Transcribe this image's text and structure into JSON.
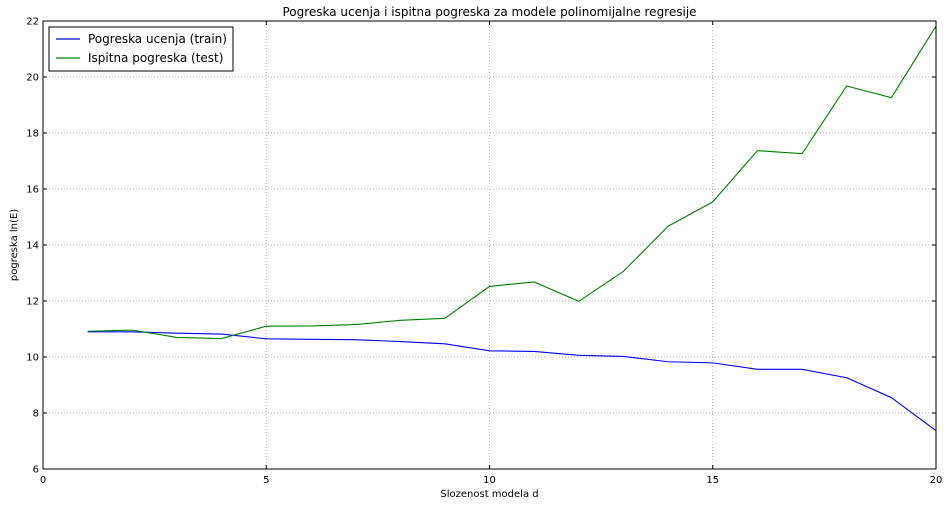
{
  "chart_data": {
    "type": "line",
    "title": "Pogreska ucenja i ispitna pogreska za modele polinomijalne regresije",
    "xlabel": "Slozenost modela d",
    "ylabel": "pogreska ln(E)",
    "xlim": [
      0,
      20
    ],
    "ylim": [
      6,
      22
    ],
    "xticks": [
      0,
      5,
      10,
      15,
      20
    ],
    "yticks": [
      6,
      8,
      10,
      12,
      14,
      16,
      18,
      20,
      22
    ],
    "grid": true,
    "legend_position": "top-left",
    "x": [
      1,
      2,
      3,
      4,
      5,
      6,
      7,
      8,
      9,
      10,
      11,
      12,
      13,
      14,
      15,
      16,
      17,
      18,
      19,
      20
    ],
    "series": [
      {
        "name": "Pogreska ucenja (train)",
        "color": "#0000ff",
        "values": [
          10.9,
          10.9,
          10.85,
          10.82,
          10.65,
          10.63,
          10.62,
          10.55,
          10.47,
          10.22,
          10.2,
          10.06,
          10.02,
          9.83,
          9.79,
          9.56,
          9.56,
          9.26,
          8.55,
          7.37
        ]
      },
      {
        "name": "Ispitna pogreska (test)",
        "color": "#008000",
        "values": [
          10.92,
          10.96,
          10.7,
          10.66,
          11.1,
          11.11,
          11.16,
          11.31,
          11.38,
          12.52,
          12.68,
          11.99,
          13.06,
          14.67,
          15.54,
          17.37,
          17.26,
          19.68,
          19.26,
          21.82
        ]
      }
    ]
  }
}
